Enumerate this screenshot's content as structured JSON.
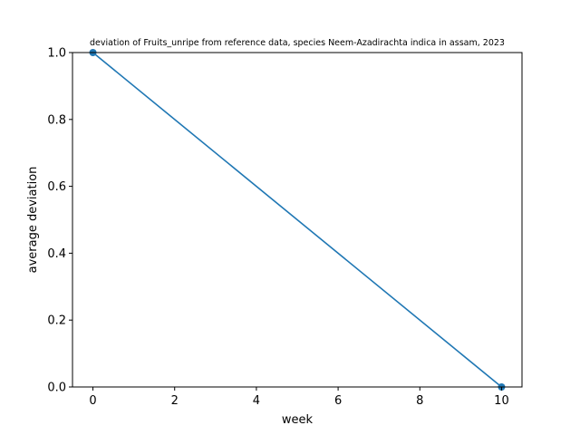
{
  "chart_data": {
    "type": "line",
    "title": "deviation of Fruits_unripe from reference data, species Neem-Azadirachta indica in assam, 2023",
    "xlabel": "week",
    "ylabel": "average deviation",
    "xlim": [
      -0.5,
      10.5
    ],
    "ylim": [
      0.0,
      1.0
    ],
    "xticks": [
      0,
      2,
      4,
      6,
      8,
      10
    ],
    "yticks": [
      0.0,
      0.2,
      0.4,
      0.6,
      0.8,
      1.0
    ],
    "xtick_labels": [
      "0",
      "2",
      "4",
      "6",
      "8",
      "10"
    ],
    "ytick_labels": [
      "0.0",
      "0.2",
      "0.4",
      "0.6",
      "0.8",
      "1.0"
    ],
    "grid": false,
    "series": [
      {
        "x": [
          0,
          10
        ],
        "y": [
          1.0,
          0.0
        ],
        "color": "#1f77b4",
        "marker": "circle"
      }
    ]
  }
}
